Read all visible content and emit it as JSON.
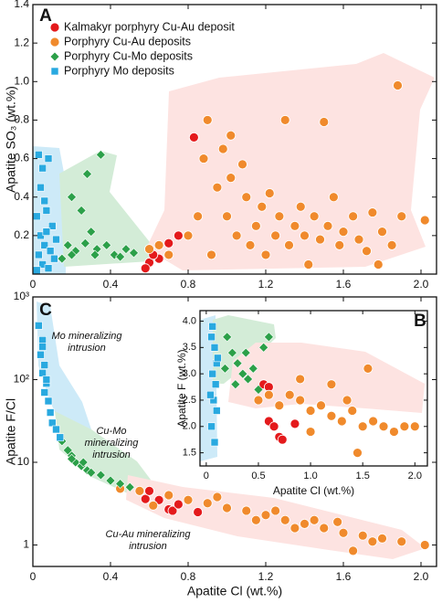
{
  "chart_data": [
    {
      "type": "scatter",
      "label": "A",
      "xlabel": "Apatite Cl (wt.%)",
      "ylabel": "Apatite SO₃ (wt.%)",
      "xlim": [
        0,
        2.08
      ],
      "ylim": [
        0,
        1.4
      ],
      "ylog": false,
      "xticks": [
        0,
        0.4,
        0.8,
        1.2,
        1.6,
        {
          "value": 2,
          "label": "2.0"
        }
      ],
      "yticks": [
        0.2,
        0.4,
        0.6,
        0.8,
        {
          "value": 1,
          "label": "1.0"
        },
        1.2,
        1.4
      ],
      "legend": "upper left",
      "show_xlabel": false,
      "series": [
        {
          "name": "Kalmakyr porphyry Cu-Au deposit",
          "color": "#e41a1c",
          "marker": "circle",
          "x": [
            0.83,
            0.75,
            0.7,
            0.6,
            0.58,
            0.65,
            0.62
          ],
          "values": [
            0.71,
            0.2,
            0.16,
            0.06,
            0.03,
            0.08,
            0.1
          ]
        },
        {
          "name": "Porphyry Cu-Au deposits",
          "color": "#f08a2c",
          "marker": "circle",
          "x": [
            0.6,
            0.65,
            0.7,
            0.8,
            0.85,
            0.9,
            0.88,
            0.95,
            0.98,
            1.0,
            1.02,
            1.05,
            1.08,
            1.1,
            1.12,
            1.15,
            1.18,
            1.2,
            1.22,
            1.25,
            1.27,
            1.3,
            1.32,
            1.35,
            1.38,
            1.4,
            1.42,
            1.45,
            1.48,
            1.5,
            1.52,
            1.55,
            1.58,
            1.6,
            1.65,
            1.68,
            1.72,
            1.75,
            1.8,
            1.85,
            1.88,
            1.9,
            2.02,
            1.78,
            0.92,
            1.02
          ],
          "values": [
            0.13,
            0.15,
            0.1,
            0.2,
            0.3,
            0.8,
            0.6,
            0.45,
            0.65,
            0.3,
            0.5,
            0.2,
            0.57,
            0.4,
            0.15,
            0.25,
            0.35,
            0.1,
            0.42,
            0.2,
            0.3,
            0.8,
            0.15,
            0.25,
            0.35,
            0.2,
            0.05,
            0.3,
            0.18,
            0.79,
            0.25,
            0.4,
            0.15,
            0.22,
            0.3,
            0.18,
            0.12,
            0.32,
            0.22,
            0.15,
            0.98,
            0.3,
            0.28,
            0.05,
            0.1,
            0.72
          ]
        },
        {
          "name": "Porphyry Cu-Mo deposits",
          "color": "#2ca049",
          "marker": "diamond",
          "x": [
            0.35,
            0.28,
            0.2,
            0.25,
            0.3,
            0.18,
            0.22,
            0.27,
            0.33,
            0.38,
            0.42,
            0.48,
            0.52,
            0.15,
            0.2,
            0.45,
            0.32
          ],
          "values": [
            0.62,
            0.52,
            0.4,
            0.33,
            0.22,
            0.15,
            0.12,
            0.16,
            0.13,
            0.15,
            0.1,
            0.13,
            0.11,
            0.08,
            0.1,
            0.09,
            0.1
          ]
        },
        {
          "name": "Porphyry Mo deposits",
          "color": "#29a9e0",
          "marker": "square",
          "x": [
            0.03,
            0.05,
            0.08,
            0.04,
            0.06,
            0.02,
            0.07,
            0.1,
            0.04,
            0.06,
            0.09,
            0.03,
            0.11,
            0.05,
            0.08,
            0.02,
            0.12,
            0.07
          ],
          "values": [
            0.62,
            0.55,
            0.6,
            0.45,
            0.38,
            0.3,
            0.33,
            0.25,
            0.2,
            0.15,
            0.12,
            0.1,
            0.08,
            0.05,
            0.03,
            0.02,
            0.18,
            0.22
          ]
        }
      ]
    },
    {
      "type": "scatter",
      "label": "C",
      "xlabel": "Apatite Cl (wt.%)",
      "ylabel": "Apatite F/Cl",
      "xlim": [
        0,
        2.08
      ],
      "ylim": [
        0.55,
        1000
      ],
      "ylog": true,
      "xticks": [
        0,
        0.4,
        0.8,
        1.2,
        1.6,
        {
          "value": 2,
          "label": "2.0"
        }
      ],
      "yticks": [
        1,
        10,
        {
          "value": 100,
          "label": "10²"
        },
        {
          "value": 1000,
          "label": "10³"
        }
      ],
      "show_xlabel": true,
      "annotations": [
        {
          "text": [
            "Mo mineralizing",
            "intrusion"
          ]
        },
        {
          "text": [
            "Cu-Mo",
            "mineralizing",
            "intrusion"
          ]
        },
        {
          "text": [
            "Cu-Au mineralizing",
            "intrusion"
          ]
        }
      ],
      "series": [
        {
          "color": "#e41a1c",
          "marker": "circle",
          "x": [
            0.58,
            0.6,
            0.65,
            0.7,
            0.72,
            0.85,
            0.75
          ],
          "values": [
            3.6,
            4.5,
            3.5,
            2.7,
            2.6,
            2.5,
            3.1
          ]
        },
        {
          "color": "#f08a2c",
          "marker": "circle",
          "x": [
            0.45,
            0.55,
            0.7,
            0.8,
            0.9,
            1.0,
            1.1,
            1.2,
            1.3,
            1.4,
            1.5,
            1.6,
            1.7,
            1.8,
            1.9,
            2.02,
            1.65,
            1.57,
            0.95,
            1.15,
            1.35,
            1.45,
            1.75,
            0.62,
            1.25
          ],
          "values": [
            4.8,
            4.5,
            4,
            3.5,
            3.2,
            2.8,
            2.6,
            2.3,
            2,
            1.8,
            1.6,
            1.4,
            1.3,
            1.2,
            1.1,
            1,
            0.85,
            1.9,
            3.8,
            2,
            1.6,
            2,
            1.1,
            3,
            2.6
          ]
        },
        {
          "color": "#2ca049",
          "marker": "diamond",
          "x": [
            0.15,
            0.18,
            0.2,
            0.22,
            0.25,
            0.28,
            0.3,
            0.35,
            0.4,
            0.45,
            0.5,
            0.2,
            0.26
          ],
          "values": [
            18,
            14,
            12,
            10,
            9,
            8,
            7.5,
            7,
            6,
            5.5,
            5,
            11,
            10
          ]
        },
        {
          "color": "#29a9e0",
          "marker": "square",
          "x": [
            0.03,
            0.05,
            0.04,
            0.06,
            0.05,
            0.07,
            0.06,
            0.08,
            0.09,
            0.1,
            0.12,
            0.14,
            0.05,
            0.07
          ],
          "values": [
            450,
            300,
            200,
            150,
            120,
            90,
            70,
            55,
            40,
            30,
            25,
            20,
            250,
            100
          ]
        }
      ]
    },
    {
      "type": "scatter",
      "label": "B",
      "xlabel": "Apatite Cl (wt.%)",
      "ylabel": "Apatite F (wt.%)",
      "xlim": [
        -0.06,
        2.12
      ],
      "ylim": [
        1.25,
        4.2
      ],
      "ylog": false,
      "xticks": [
        0,
        0.5,
        {
          "value": 1,
          "label": "1.0"
        },
        1.5,
        {
          "value": 2,
          "label": "2.0"
        }
      ],
      "yticks": [
        1.5,
        {
          "value": 2,
          "label": "2.0"
        },
        2.5,
        {
          "value": 3,
          "label": "3.0"
        },
        3.5,
        {
          "value": 4,
          "label": "4.0"
        }
      ],
      "show_xlabel": true,
      "series": [
        {
          "color": "#e41a1c",
          "marker": "circle",
          "x": [
            0.55,
            0.6,
            0.65,
            0.7,
            0.73,
            0.85,
            0.6
          ],
          "values": [
            2.8,
            2.1,
            2,
            1.8,
            1.75,
            2.05,
            2.75
          ]
        },
        {
          "color": "#f08a2c",
          "marker": "circle",
          "x": [
            0.5,
            0.6,
            0.7,
            0.8,
            0.9,
            1.0,
            1.1,
            1.2,
            1.3,
            1.4,
            1.5,
            1.6,
            1.7,
            1.8,
            1.9,
            2.0,
            1.55,
            1.2,
            1.45,
            1.0,
            0.9,
            1.35
          ],
          "values": [
            2.5,
            2.6,
            2.4,
            2.6,
            2.5,
            2.3,
            2.4,
            2.2,
            2.1,
            2.3,
            2,
            2.1,
            2,
            1.9,
            2,
            2,
            3.1,
            2.8,
            1.5,
            1.9,
            2.9,
            2.5
          ]
        },
        {
          "color": "#2ca049",
          "marker": "diamond",
          "x": [
            0.2,
            0.25,
            0.3,
            0.35,
            0.4,
            0.28,
            0.45,
            0.5,
            0.55,
            0.6,
            0.18,
            0.38
          ],
          "values": [
            3.7,
            3.4,
            3.2,
            3,
            2.9,
            2.8,
            3.1,
            2.7,
            3.5,
            3.7,
            3.1,
            3.4
          ]
        },
        {
          "color": "#29a9e0",
          "marker": "square",
          "x": [
            0.05,
            0.08,
            0.1,
            0.06,
            0.09,
            0.07,
            0.1,
            0.05,
            0.08,
            0.06,
            0.11,
            0.04
          ],
          "values": [
            3.7,
            3.5,
            3.2,
            3,
            2.8,
            2.5,
            2.3,
            2,
            1.7,
            3.9,
            3.3,
            2.6
          ]
        }
      ]
    }
  ]
}
